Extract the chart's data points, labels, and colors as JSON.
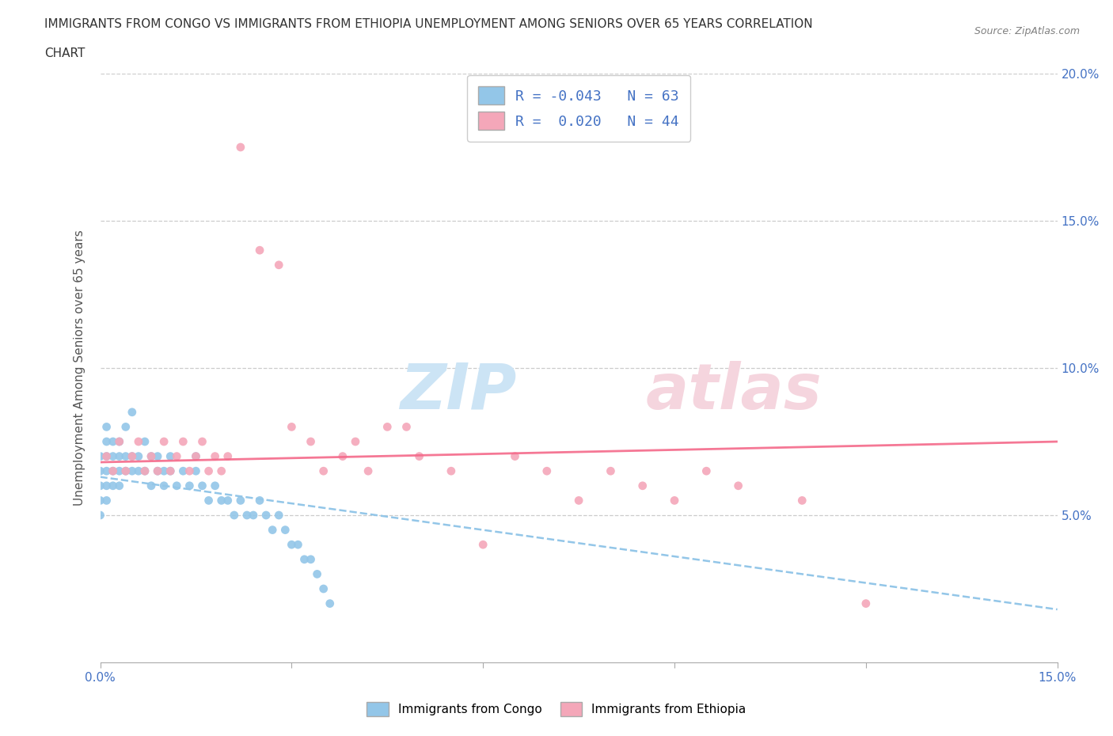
{
  "title_line1": "IMMIGRANTS FROM CONGO VS IMMIGRANTS FROM ETHIOPIA UNEMPLOYMENT AMONG SENIORS OVER 65 YEARS CORRELATION",
  "title_line2": "CHART",
  "source": "Source: ZipAtlas.com",
  "ylabel": "Unemployment Among Seniors over 65 years",
  "xlim": [
    0.0,
    0.15
  ],
  "ylim": [
    0.0,
    0.2
  ],
  "xtick_vals": [
    0.0,
    0.03,
    0.06,
    0.09,
    0.12,
    0.15
  ],
  "xtick_labels": [
    "0.0%",
    "",
    "",
    "",
    "",
    "15.0%"
  ],
  "ytick_vals": [
    0.0,
    0.05,
    0.1,
    0.15,
    0.2
  ],
  "ytick_labels": [
    "",
    "5.0%",
    "10.0%",
    "15.0%",
    "20.0%"
  ],
  "color_congo": "#93c6e8",
  "color_ethiopia": "#f4a7b9",
  "legend_r_congo": "R = -0.043",
  "legend_n_congo": "N = 63",
  "legend_r_ethiopia": "R =  0.020",
  "legend_n_ethiopia": "N = 44",
  "congo_x": [
    0.0,
    0.0,
    0.0,
    0.0,
    0.0,
    0.001,
    0.001,
    0.001,
    0.001,
    0.001,
    0.001,
    0.002,
    0.002,
    0.002,
    0.002,
    0.003,
    0.003,
    0.003,
    0.003,
    0.004,
    0.004,
    0.004,
    0.005,
    0.005,
    0.005,
    0.006,
    0.006,
    0.007,
    0.007,
    0.008,
    0.008,
    0.009,
    0.009,
    0.01,
    0.01,
    0.011,
    0.011,
    0.012,
    0.013,
    0.014,
    0.015,
    0.015,
    0.016,
    0.017,
    0.018,
    0.019,
    0.02,
    0.021,
    0.022,
    0.023,
    0.024,
    0.025,
    0.026,
    0.027,
    0.028,
    0.029,
    0.03,
    0.031,
    0.032,
    0.033,
    0.034,
    0.035,
    0.036
  ],
  "congo_y": [
    0.055,
    0.06,
    0.065,
    0.07,
    0.05,
    0.055,
    0.06,
    0.065,
    0.07,
    0.075,
    0.08,
    0.06,
    0.065,
    0.07,
    0.075,
    0.06,
    0.065,
    0.07,
    0.075,
    0.065,
    0.07,
    0.08,
    0.065,
    0.07,
    0.085,
    0.065,
    0.07,
    0.065,
    0.075,
    0.06,
    0.07,
    0.065,
    0.07,
    0.06,
    0.065,
    0.065,
    0.07,
    0.06,
    0.065,
    0.06,
    0.065,
    0.07,
    0.06,
    0.055,
    0.06,
    0.055,
    0.055,
    0.05,
    0.055,
    0.05,
    0.05,
    0.055,
    0.05,
    0.045,
    0.05,
    0.045,
    0.04,
    0.04,
    0.035,
    0.035,
    0.03,
    0.025,
    0.02
  ],
  "ethiopia_x": [
    0.001,
    0.002,
    0.003,
    0.004,
    0.005,
    0.006,
    0.007,
    0.008,
    0.009,
    0.01,
    0.011,
    0.012,
    0.013,
    0.014,
    0.015,
    0.016,
    0.017,
    0.018,
    0.019,
    0.02,
    0.022,
    0.025,
    0.028,
    0.03,
    0.033,
    0.035,
    0.038,
    0.04,
    0.042,
    0.045,
    0.048,
    0.05,
    0.055,
    0.06,
    0.065,
    0.07,
    0.075,
    0.08,
    0.085,
    0.09,
    0.095,
    0.1,
    0.11,
    0.12
  ],
  "ethiopia_y": [
    0.07,
    0.065,
    0.075,
    0.065,
    0.07,
    0.075,
    0.065,
    0.07,
    0.065,
    0.075,
    0.065,
    0.07,
    0.075,
    0.065,
    0.07,
    0.075,
    0.065,
    0.07,
    0.065,
    0.07,
    0.175,
    0.14,
    0.135,
    0.08,
    0.075,
    0.065,
    0.07,
    0.075,
    0.065,
    0.08,
    0.08,
    0.07,
    0.065,
    0.04,
    0.07,
    0.065,
    0.055,
    0.065,
    0.06,
    0.055,
    0.065,
    0.06,
    0.055,
    0.02
  ],
  "grid_color": "#cccccc",
  "background_color": "#ffffff",
  "title_color": "#333333",
  "axis_color": "#4472c4",
  "trendline_congo_color": "#93c6e8",
  "trendline_ethiopia_color": "#f4698a",
  "watermark_zip_color": "#cce4f5",
  "watermark_atlas_color": "#f5d5de"
}
